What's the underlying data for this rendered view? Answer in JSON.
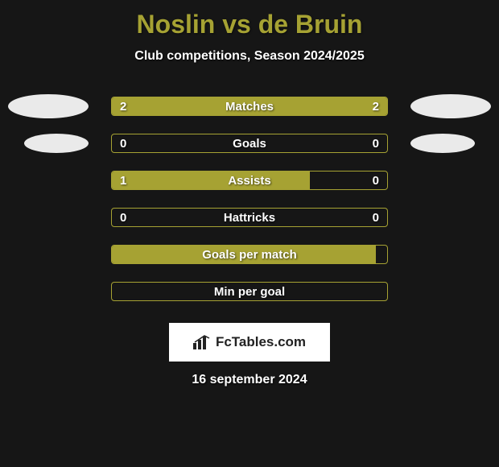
{
  "title": "Noslin vs de Bruin",
  "subtitle": "Club competitions, Season 2024/2025",
  "date": "16 september 2024",
  "logo_text": "FcTables.com",
  "colors": {
    "background": "#161616",
    "accent": "#a6a233",
    "ellipse": "#eaeaea",
    "text": "#ffffff",
    "logo_bg": "#ffffff",
    "logo_text": "#222222"
  },
  "rows": [
    {
      "label": "Matches",
      "left_value": "2",
      "right_value": "2",
      "left_fill_pct": 50,
      "right_fill_pct": 50,
      "show_values": true,
      "show_left_ellipse": true,
      "show_right_ellipse": true,
      "ellipse_small": false
    },
    {
      "label": "Goals",
      "left_value": "0",
      "right_value": "0",
      "left_fill_pct": 0,
      "right_fill_pct": 0,
      "show_values": true,
      "show_left_ellipse": true,
      "show_right_ellipse": true,
      "ellipse_small": true
    },
    {
      "label": "Assists",
      "left_value": "1",
      "right_value": "0",
      "left_fill_pct": 72,
      "right_fill_pct": 0,
      "show_values": true,
      "show_left_ellipse": false,
      "show_right_ellipse": false,
      "ellipse_small": false
    },
    {
      "label": "Hattricks",
      "left_value": "0",
      "right_value": "0",
      "left_fill_pct": 0,
      "right_fill_pct": 0,
      "show_values": true,
      "show_left_ellipse": false,
      "show_right_ellipse": false,
      "ellipse_small": false
    },
    {
      "label": "Goals per match",
      "left_value": "",
      "right_value": "",
      "left_fill_pct": 96,
      "right_fill_pct": 0,
      "show_values": false,
      "show_left_ellipse": false,
      "show_right_ellipse": false,
      "ellipse_small": false
    },
    {
      "label": "Min per goal",
      "left_value": "",
      "right_value": "",
      "left_fill_pct": 0,
      "right_fill_pct": 0,
      "show_values": false,
      "show_left_ellipse": false,
      "show_right_ellipse": false,
      "ellipse_small": false
    }
  ]
}
